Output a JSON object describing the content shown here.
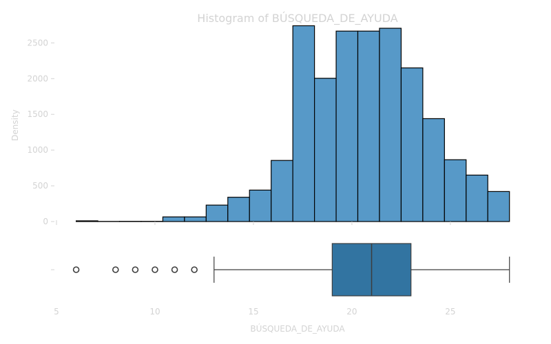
{
  "chart_data": {
    "type": "bar",
    "title": "Histogram of BÚSQUEDA_DE_AYUDA",
    "xlabel": "BÚSQUEDA_DE_AYUDA",
    "ylabel": "Density",
    "xlim": [
      5,
      28.5
    ],
    "ylim": [
      0,
      2850
    ],
    "xticks": [
      5,
      10,
      15,
      20,
      25
    ],
    "yticks": [
      0,
      500,
      1000,
      1500,
      2000,
      2500
    ],
    "grid": false,
    "bar_color": "#5799c8",
    "edge_color": "#000000",
    "bins": [
      {
        "x0": 6.0,
        "x1": 7.1,
        "value": 10
      },
      {
        "x0": 7.1,
        "x1": 8.2,
        "value": 2
      },
      {
        "x0": 8.2,
        "x1": 9.3,
        "value": 3
      },
      {
        "x0": 9.3,
        "x1": 10.4,
        "value": 3
      },
      {
        "x0": 10.4,
        "x1": 11.5,
        "value": 65
      },
      {
        "x0": 11.5,
        "x1": 12.6,
        "value": 65
      },
      {
        "x0": 12.6,
        "x1": 13.7,
        "value": 230
      },
      {
        "x0": 13.7,
        "x1": 14.8,
        "value": 340
      },
      {
        "x0": 14.8,
        "x1": 15.9,
        "value": 440
      },
      {
        "x0": 15.9,
        "x1": 17.0,
        "value": 855
      },
      {
        "x0": 17.0,
        "x1": 18.1,
        "value": 2740
      },
      {
        "x0": 18.1,
        "x1": 19.2,
        "value": 2005
      },
      {
        "x0": 19.2,
        "x1": 20.3,
        "value": 2665
      },
      {
        "x0": 20.3,
        "x1": 21.4,
        "value": 2665
      },
      {
        "x0": 21.4,
        "x1": 22.5,
        "value": 2705
      },
      {
        "x0": 22.5,
        "x1": 23.6,
        "value": 2150
      },
      {
        "x0": 23.6,
        "x1": 24.7,
        "value": 1440
      },
      {
        "x0": 24.7,
        "x1": 25.8,
        "value": 865
      },
      {
        "x0": 25.8,
        "x1": 26.9,
        "value": 650
      },
      {
        "x0": 26.9,
        "x1": 28.0,
        "value": 420
      }
    ],
    "boxplot": {
      "whisker_low": 13,
      "q1": 19,
      "median": 21,
      "q3": 23,
      "whisker_high": 28,
      "outliers": [
        6,
        8,
        9,
        10,
        11,
        12
      ],
      "box_color": "#3274a1",
      "line_color": "#3d3d3d"
    }
  }
}
